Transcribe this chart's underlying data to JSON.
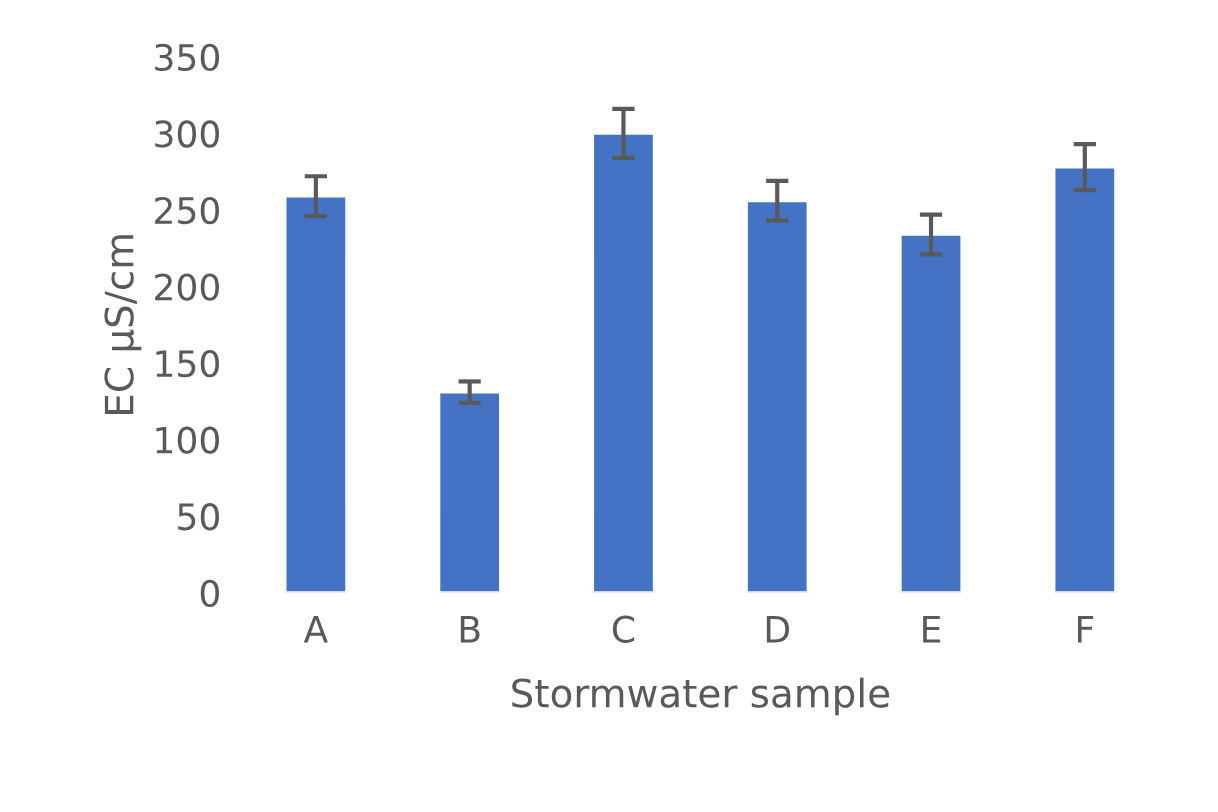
{
  "chart_data": {
    "type": "bar",
    "xlabel": "Stormwater sample",
    "ylabel": "EC µS/cm",
    "categories": [
      "A",
      "B",
      "C",
      "D",
      "E",
      "F"
    ],
    "values": [
      259,
      131,
      300,
      256,
      234,
      278
    ],
    "errors": [
      13,
      7,
      16,
      13,
      13,
      15
    ],
    "color": "#4472c4",
    "ylim": [
      0,
      350
    ],
    "yticks": [
      0,
      50,
      100,
      150,
      200,
      250,
      300,
      350
    ],
    "grid": false,
    "legend": false
  }
}
